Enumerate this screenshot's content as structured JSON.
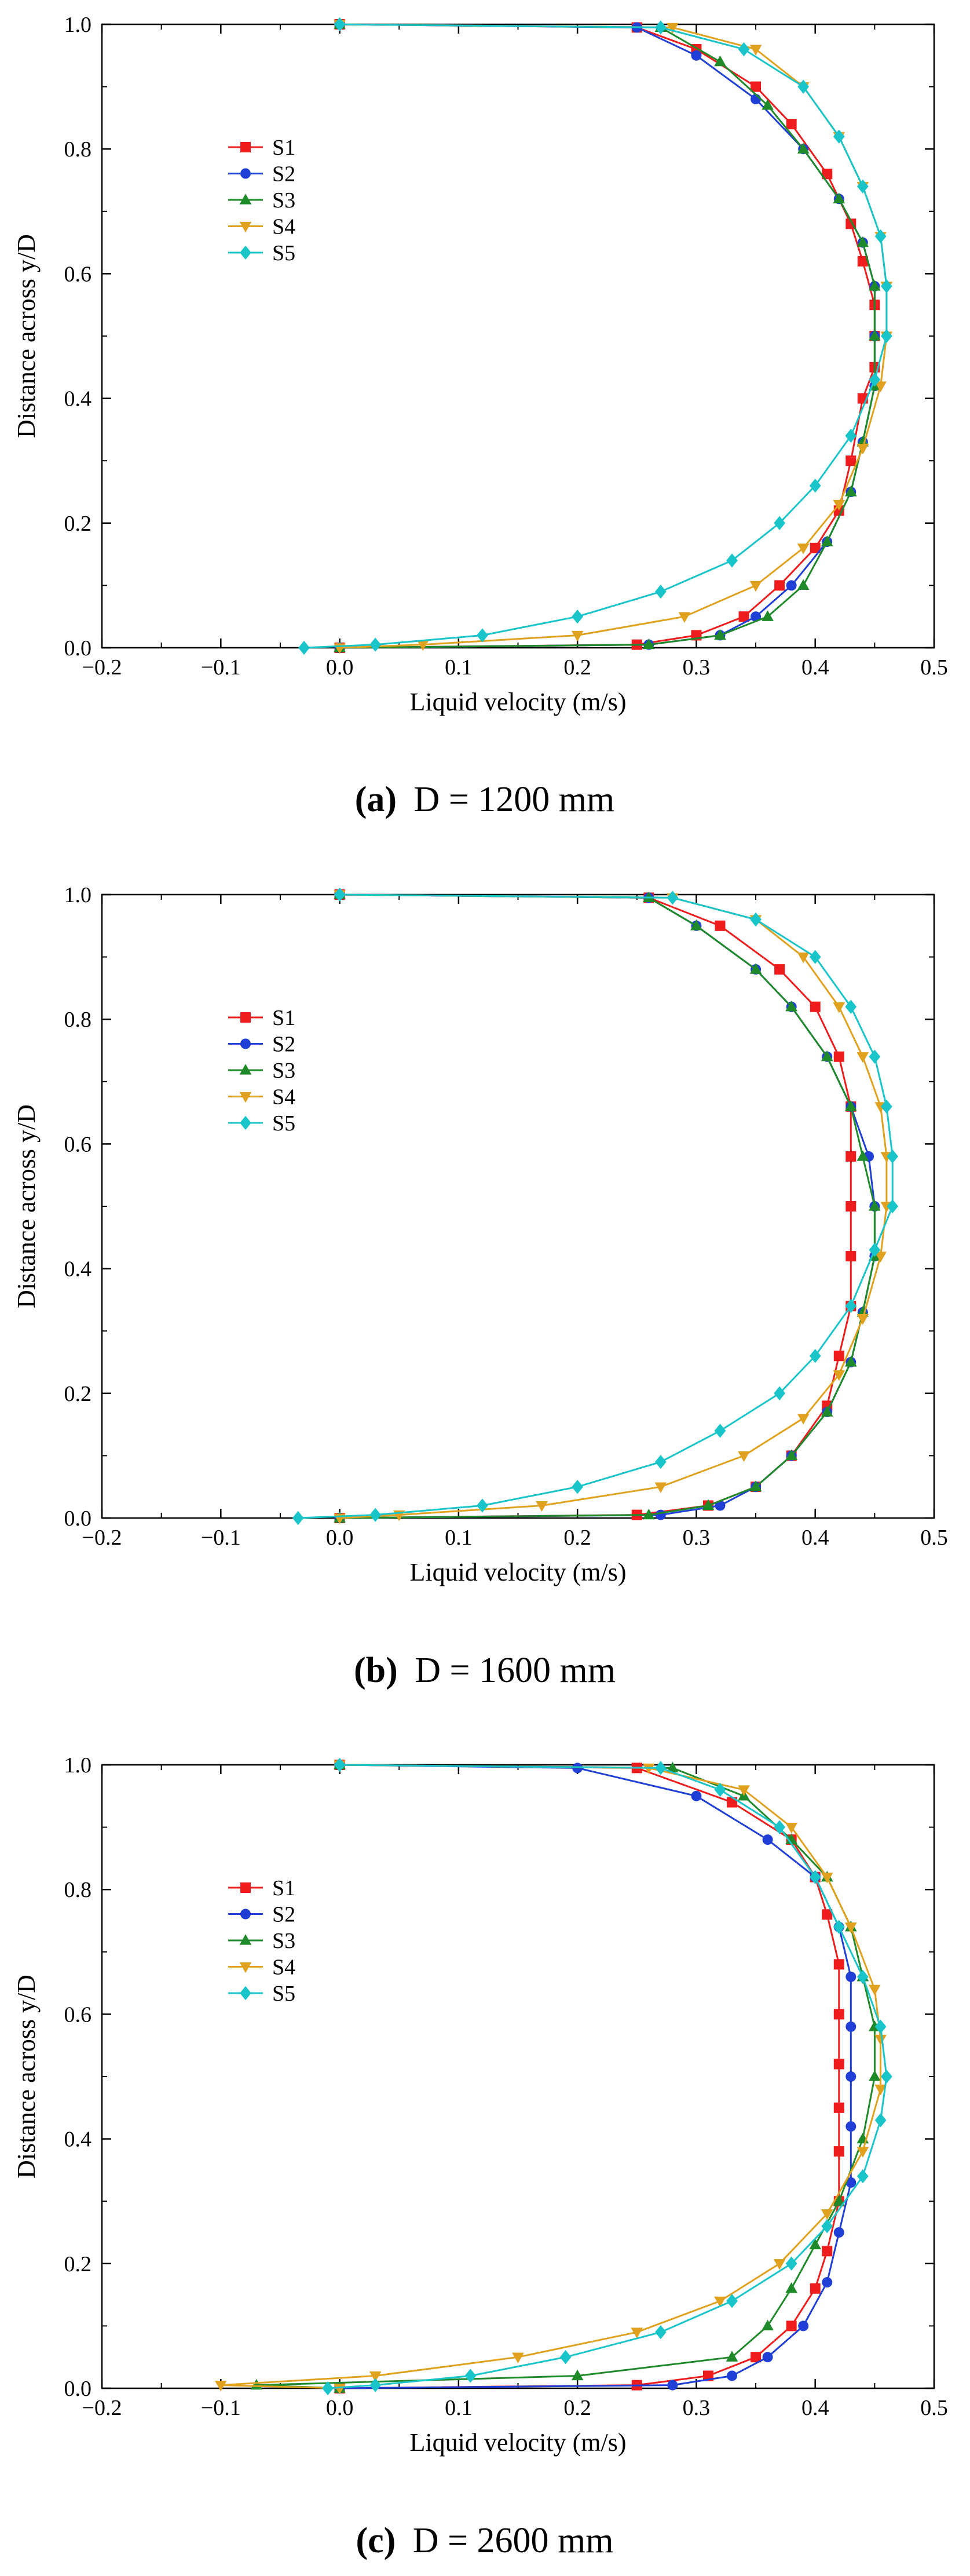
{
  "panels": [
    {
      "letter": "(a)",
      "caption": "D = 1200 mm"
    },
    {
      "letter": "(b)",
      "caption": "D = 1600 mm"
    },
    {
      "letter": "(c)",
      "caption": "D = 2600 mm"
    }
  ],
  "chart_data": [
    {
      "type": "line",
      "xlabel": "Liquid velocity (m/s)",
      "ylabel": "Distance across y/D",
      "xlim": [
        -0.2,
        0.5
      ],
      "ylim": [
        0,
        1
      ],
      "xticks": [
        -0.2,
        -0.1,
        0.0,
        0.1,
        0.2,
        0.3,
        0.4,
        0.5
      ],
      "xtick_labels": [
        "−0.2",
        "−0.1",
        "0.0",
        "0.1",
        "0.2",
        "0.3",
        "0.4",
        "0.5"
      ],
      "yticks": [
        0,
        0.2,
        0.4,
        0.6,
        0.8,
        1.0
      ],
      "ytick_labels": [
        "0.0",
        "0.2",
        "0.4",
        "0.6",
        "0.8",
        "1.0"
      ],
      "legend": "upper-left",
      "grid": false,
      "series": [
        {
          "name": "S1",
          "color": "#ee1c1c",
          "marker": "square",
          "x": [
            0.0,
            0.25,
            0.3,
            0.34,
            0.37,
            0.4,
            0.42,
            0.43,
            0.44,
            0.45,
            0.45,
            0.45,
            0.44,
            0.43,
            0.41,
            0.38,
            0.35,
            0.3,
            0.25,
            0.0
          ],
          "y": [
            0.0,
            0.005,
            0.02,
            0.05,
            0.1,
            0.16,
            0.22,
            0.3,
            0.4,
            0.45,
            0.5,
            0.55,
            0.62,
            0.68,
            0.76,
            0.84,
            0.9,
            0.96,
            0.995,
            1.0
          ]
        },
        {
          "name": "S2",
          "color": "#1f3fd6",
          "marker": "circle",
          "x": [
            0.0,
            0.26,
            0.32,
            0.35,
            0.38,
            0.41,
            0.43,
            0.44,
            0.45,
            0.45,
            0.45,
            0.44,
            0.42,
            0.39,
            0.35,
            0.3,
            0.25,
            0.0
          ],
          "y": [
            0.0,
            0.005,
            0.02,
            0.05,
            0.1,
            0.17,
            0.25,
            0.33,
            0.42,
            0.5,
            0.58,
            0.65,
            0.72,
            0.8,
            0.88,
            0.95,
            0.995,
            1.0
          ]
        },
        {
          "name": "S3",
          "color": "#1f8a2a",
          "marker": "triangle-up",
          "x": [
            0.0,
            0.26,
            0.32,
            0.36,
            0.39,
            0.41,
            0.43,
            0.44,
            0.45,
            0.45,
            0.45,
            0.44,
            0.42,
            0.39,
            0.36,
            0.32,
            0.27,
            0.0
          ],
          "y": [
            0.0,
            0.005,
            0.02,
            0.05,
            0.1,
            0.17,
            0.25,
            0.33,
            0.42,
            0.5,
            0.58,
            0.65,
            0.72,
            0.8,
            0.87,
            0.94,
            0.995,
            1.0
          ]
        },
        {
          "name": "S4",
          "color": "#e0a21e",
          "marker": "triangle-down",
          "x": [
            0.0,
            0.07,
            0.2,
            0.29,
            0.35,
            0.39,
            0.42,
            0.44,
            0.455,
            0.46,
            0.46,
            0.455,
            0.44,
            0.42,
            0.39,
            0.35,
            0.28,
            0.0
          ],
          "y": [
            0.0,
            0.005,
            0.02,
            0.05,
            0.1,
            0.16,
            0.23,
            0.32,
            0.42,
            0.5,
            0.58,
            0.66,
            0.74,
            0.82,
            0.9,
            0.96,
            0.995,
            1.0
          ]
        },
        {
          "name": "S5",
          "color": "#19c5c9",
          "marker": "diamond",
          "x": [
            -0.03,
            0.03,
            0.12,
            0.2,
            0.27,
            0.33,
            0.37,
            0.4,
            0.43,
            0.45,
            0.46,
            0.46,
            0.455,
            0.44,
            0.42,
            0.39,
            0.34,
            0.27,
            0.0
          ],
          "y": [
            0.0,
            0.005,
            0.02,
            0.05,
            0.09,
            0.14,
            0.2,
            0.26,
            0.34,
            0.43,
            0.5,
            0.58,
            0.66,
            0.74,
            0.82,
            0.9,
            0.96,
            0.995,
            1.0
          ]
        }
      ]
    },
    {
      "type": "line",
      "xlabel": "Liquid velocity (m/s)",
      "ylabel": "Distance across y/D",
      "xlim": [
        -0.2,
        0.5
      ],
      "ylim": [
        0,
        1
      ],
      "xticks": [
        -0.2,
        -0.1,
        0.0,
        0.1,
        0.2,
        0.3,
        0.4,
        0.5
      ],
      "xtick_labels": [
        "−0.2",
        "−0.1",
        "0.0",
        "0.1",
        "0.2",
        "0.3",
        "0.4",
        "0.5"
      ],
      "yticks": [
        0,
        0.2,
        0.4,
        0.6,
        0.8,
        1.0
      ],
      "ytick_labels": [
        "0.0",
        "0.2",
        "0.4",
        "0.6",
        "0.8",
        "1.0"
      ],
      "legend": "upper-left",
      "grid": false,
      "series": [
        {
          "name": "S1",
          "color": "#ee1c1c",
          "marker": "square",
          "x": [
            0.0,
            0.25,
            0.31,
            0.35,
            0.38,
            0.41,
            0.42,
            0.43,
            0.43,
            0.43,
            0.43,
            0.43,
            0.42,
            0.4,
            0.37,
            0.32,
            0.26,
            0.0
          ],
          "y": [
            0.0,
            0.005,
            0.02,
            0.05,
            0.1,
            0.18,
            0.26,
            0.34,
            0.42,
            0.5,
            0.58,
            0.66,
            0.74,
            0.82,
            0.88,
            0.95,
            0.995,
            1.0
          ]
        },
        {
          "name": "S2",
          "color": "#1f3fd6",
          "marker": "circle",
          "x": [
            0.0,
            0.27,
            0.32,
            0.35,
            0.38,
            0.41,
            0.43,
            0.44,
            0.45,
            0.45,
            0.445,
            0.43,
            0.41,
            0.38,
            0.35,
            0.3,
            0.26,
            0.0
          ],
          "y": [
            0.0,
            0.005,
            0.02,
            0.05,
            0.1,
            0.17,
            0.25,
            0.33,
            0.42,
            0.5,
            0.58,
            0.66,
            0.74,
            0.82,
            0.88,
            0.95,
            0.995,
            1.0
          ]
        },
        {
          "name": "S3",
          "color": "#1f8a2a",
          "marker": "triangle-up",
          "x": [
            0.0,
            0.26,
            0.31,
            0.35,
            0.38,
            0.41,
            0.43,
            0.44,
            0.45,
            0.45,
            0.44,
            0.43,
            0.41,
            0.38,
            0.35,
            0.3,
            0.26,
            0.0
          ],
          "y": [
            0.0,
            0.005,
            0.02,
            0.05,
            0.1,
            0.17,
            0.25,
            0.33,
            0.42,
            0.5,
            0.58,
            0.66,
            0.74,
            0.82,
            0.88,
            0.95,
            0.995,
            1.0
          ]
        },
        {
          "name": "S4",
          "color": "#e0a21e",
          "marker": "triangle-down",
          "x": [
            0.0,
            0.05,
            0.17,
            0.27,
            0.34,
            0.39,
            0.42,
            0.44,
            0.455,
            0.46,
            0.46,
            0.455,
            0.44,
            0.42,
            0.39,
            0.35,
            0.28,
            0.0
          ],
          "y": [
            0.0,
            0.005,
            0.02,
            0.05,
            0.1,
            0.16,
            0.23,
            0.32,
            0.42,
            0.5,
            0.58,
            0.66,
            0.74,
            0.82,
            0.9,
            0.96,
            0.995,
            1.0
          ]
        },
        {
          "name": "S5",
          "color": "#19c5c9",
          "marker": "diamond",
          "x": [
            -0.035,
            0.03,
            0.12,
            0.2,
            0.27,
            0.32,
            0.37,
            0.4,
            0.43,
            0.45,
            0.465,
            0.465,
            0.46,
            0.45,
            0.43,
            0.4,
            0.35,
            0.28,
            0.0
          ],
          "y": [
            0.0,
            0.005,
            0.02,
            0.05,
            0.09,
            0.14,
            0.2,
            0.26,
            0.34,
            0.43,
            0.5,
            0.58,
            0.66,
            0.74,
            0.82,
            0.9,
            0.96,
            0.995,
            1.0
          ]
        }
      ]
    },
    {
      "type": "line",
      "xlabel": "Liquid velocity (m/s)",
      "ylabel": "Distance across y/D",
      "xlim": [
        -0.2,
        0.5
      ],
      "ylim": [
        0,
        1
      ],
      "xticks": [
        -0.2,
        -0.1,
        0.0,
        0.1,
        0.2,
        0.3,
        0.4,
        0.5
      ],
      "xtick_labels": [
        "−0.2",
        "−0.1",
        "0.0",
        "0.1",
        "0.2",
        "0.3",
        "0.4",
        "0.5"
      ],
      "yticks": [
        0,
        0.2,
        0.4,
        0.6,
        0.8,
        1.0
      ],
      "ytick_labels": [
        "0.0",
        "0.2",
        "0.4",
        "0.6",
        "0.8",
        "1.0"
      ],
      "legend": "upper-left",
      "grid": false,
      "series": [
        {
          "name": "S1",
          "color": "#ee1c1c",
          "marker": "square",
          "x": [
            0.0,
            0.25,
            0.31,
            0.35,
            0.38,
            0.4,
            0.41,
            0.42,
            0.42,
            0.42,
            0.42,
            0.42,
            0.42,
            0.41,
            0.4,
            0.38,
            0.33,
            0.25,
            0.0
          ],
          "y": [
            0.0,
            0.005,
            0.02,
            0.05,
            0.1,
            0.16,
            0.22,
            0.3,
            0.38,
            0.45,
            0.52,
            0.6,
            0.68,
            0.76,
            0.82,
            0.88,
            0.94,
            0.995,
            1.0
          ]
        },
        {
          "name": "S2",
          "color": "#1f3fd6",
          "marker": "circle",
          "x": [
            0.0,
            0.28,
            0.33,
            0.36,
            0.39,
            0.41,
            0.42,
            0.43,
            0.43,
            0.43,
            0.43,
            0.43,
            0.42,
            0.4,
            0.36,
            0.3,
            0.2,
            0.0
          ],
          "y": [
            0.0,
            0.005,
            0.02,
            0.05,
            0.1,
            0.17,
            0.25,
            0.33,
            0.42,
            0.5,
            0.58,
            0.66,
            0.74,
            0.82,
            0.88,
            0.95,
            0.995,
            1.0
          ]
        },
        {
          "name": "S3",
          "color": "#1f8a2a",
          "marker": "triangle-up",
          "x": [
            0.0,
            -0.07,
            0.2,
            0.33,
            0.36,
            0.38,
            0.4,
            0.42,
            0.44,
            0.45,
            0.45,
            0.44,
            0.43,
            0.41,
            0.38,
            0.34,
            0.28,
            0.0
          ],
          "y": [
            0.0,
            0.005,
            0.02,
            0.05,
            0.1,
            0.16,
            0.23,
            0.3,
            0.4,
            0.5,
            0.58,
            0.66,
            0.74,
            0.82,
            0.88,
            0.95,
            0.995,
            1.0
          ]
        },
        {
          "name": "S4",
          "color": "#e0a21e",
          "marker": "triangle-down",
          "x": [
            0.0,
            -0.1,
            0.03,
            0.15,
            0.25,
            0.32,
            0.37,
            0.41,
            0.44,
            0.455,
            0.455,
            0.45,
            0.43,
            0.41,
            0.38,
            0.34,
            0.26,
            0.0
          ],
          "y": [
            0.0,
            0.005,
            0.02,
            0.05,
            0.09,
            0.14,
            0.2,
            0.28,
            0.38,
            0.48,
            0.56,
            0.64,
            0.74,
            0.82,
            0.9,
            0.96,
            0.995,
            1.0
          ]
        },
        {
          "name": "S5",
          "color": "#19c5c9",
          "marker": "diamond",
          "x": [
            -0.01,
            0.03,
            0.11,
            0.19,
            0.27,
            0.33,
            0.38,
            0.41,
            0.44,
            0.455,
            0.46,
            0.455,
            0.44,
            0.42,
            0.4,
            0.37,
            0.32,
            0.27,
            0.0
          ],
          "y": [
            0.0,
            0.005,
            0.02,
            0.05,
            0.09,
            0.14,
            0.2,
            0.26,
            0.34,
            0.43,
            0.5,
            0.58,
            0.66,
            0.74,
            0.82,
            0.9,
            0.96,
            0.995,
            1.0
          ]
        }
      ]
    }
  ]
}
